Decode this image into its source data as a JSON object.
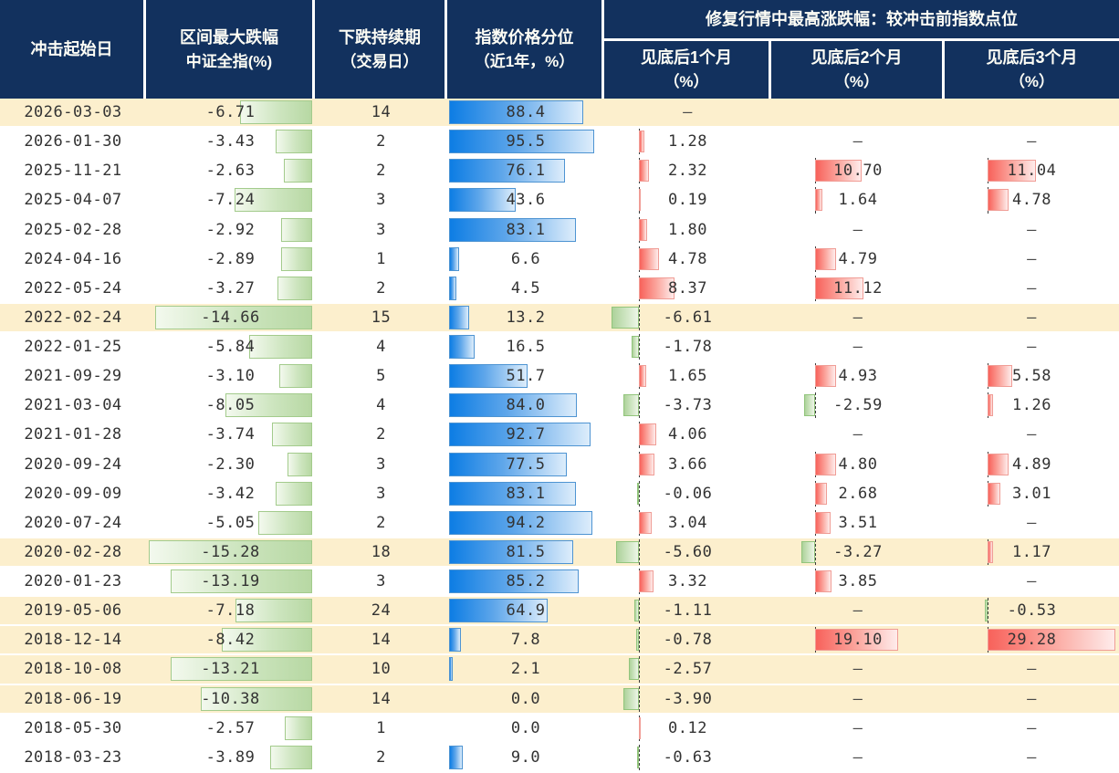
{
  "header": {
    "date": "冲击起始日",
    "drawdown_line1": "区间最大跌幅",
    "drawdown_line2": "中证全指(%)",
    "duration_line1": "下跌持续期",
    "duration_line2": "（交易日）",
    "percentile_line1": "指数价格分位",
    "percentile_line2": "（近1年，%）",
    "recovery_group": "修复行情中最高涨跌幅：较冲击前指数点位",
    "recovery_sub": [
      {
        "line1": "见底后1个月",
        "line2": "（%）"
      },
      {
        "line1": "见底后2个月",
        "line2": "（%）"
      },
      {
        "line1": "见底后3个月",
        "line2": "（%）"
      }
    ]
  },
  "missing_marker": "–",
  "colors": {
    "header_bg": "#12315e",
    "header_text": "#fdfdf5",
    "highlight_row_bg": "#fcefcd",
    "body_text": "#333333",
    "drawdown_bar_fill": "#b7d8a3",
    "drawdown_bar_border": "#a3cb8c",
    "percentile_bar_fill": "#0d7de4",
    "percentile_bar_border": "#4e94d2",
    "gain_bar_fill": "#f8625b",
    "gain_bar_border": "#f09d96",
    "loss_bar_fill": "#add29a",
    "loss_bar_border": "#92c57c",
    "axis_line": "#3c3c3c"
  },
  "chart_data": {
    "type": "table",
    "columns": [
      "冲击起始日",
      "区间最大跌幅 中证全指(%)",
      "下跌持续期（交易日）",
      "指数价格分位（近1年，%）",
      "修复行情中最高涨跌幅 见底后1个月（%）",
      "修复行情中最高涨跌幅 见底后2个月（%）",
      "修复行情中最高涨跌幅 见底后3个月（%）"
    ],
    "rows": [
      {
        "date": "2026-03-03",
        "max_drawdown": -6.71,
        "duration_days": 14,
        "percentile_1y": 88.4,
        "m1": "–",
        "m2": null,
        "m3": null,
        "highlighted": true
      },
      {
        "date": "2026-01-30",
        "max_drawdown": -3.43,
        "duration_days": 2,
        "percentile_1y": 95.5,
        "m1": 1.28,
        "m2": "–",
        "m3": "–",
        "highlighted": false
      },
      {
        "date": "2025-11-21",
        "max_drawdown": -2.63,
        "duration_days": 2,
        "percentile_1y": 76.1,
        "m1": 2.32,
        "m2": 10.7,
        "m3": 11.04,
        "highlighted": false
      },
      {
        "date": "2025-04-07",
        "max_drawdown": -7.24,
        "duration_days": 3,
        "percentile_1y": 43.6,
        "m1": 0.19,
        "m2": 1.64,
        "m3": 4.78,
        "highlighted": false
      },
      {
        "date": "2025-02-28",
        "max_drawdown": -2.92,
        "duration_days": 3,
        "percentile_1y": 83.1,
        "m1": 1.8,
        "m2": "–",
        "m3": "–",
        "highlighted": false
      },
      {
        "date": "2024-04-16",
        "max_drawdown": -2.89,
        "duration_days": 1,
        "percentile_1y": 6.6,
        "m1": 4.78,
        "m2": 4.79,
        "m3": "–",
        "highlighted": false
      },
      {
        "date": "2022-05-24",
        "max_drawdown": -3.27,
        "duration_days": 2,
        "percentile_1y": 4.5,
        "m1": 8.37,
        "m2": 11.12,
        "m3": "–",
        "highlighted": false
      },
      {
        "date": "2022-02-24",
        "max_drawdown": -14.66,
        "duration_days": 15,
        "percentile_1y": 13.2,
        "m1": -6.61,
        "m2": "–",
        "m3": "–",
        "highlighted": true
      },
      {
        "date": "2022-01-25",
        "max_drawdown": -5.84,
        "duration_days": 4,
        "percentile_1y": 16.5,
        "m1": -1.78,
        "m2": "–",
        "m3": "–",
        "highlighted": false
      },
      {
        "date": "2021-09-29",
        "max_drawdown": -3.1,
        "duration_days": 5,
        "percentile_1y": 51.7,
        "m1": 1.65,
        "m2": 4.93,
        "m3": 5.58,
        "highlighted": false
      },
      {
        "date": "2021-03-04",
        "max_drawdown": -8.05,
        "duration_days": 4,
        "percentile_1y": 84.0,
        "m1": -3.73,
        "m2": -2.59,
        "m3": 1.26,
        "highlighted": false
      },
      {
        "date": "2021-01-28",
        "max_drawdown": -3.74,
        "duration_days": 2,
        "percentile_1y": 92.7,
        "m1": 4.06,
        "m2": "–",
        "m3": "–",
        "highlighted": false
      },
      {
        "date": "2020-09-24",
        "max_drawdown": -2.3,
        "duration_days": 3,
        "percentile_1y": 77.5,
        "m1": 3.66,
        "m2": 4.8,
        "m3": 4.89,
        "highlighted": false
      },
      {
        "date": "2020-09-09",
        "max_drawdown": -3.42,
        "duration_days": 3,
        "percentile_1y": 83.1,
        "m1": -0.06,
        "m2": 2.68,
        "m3": 3.01,
        "highlighted": false
      },
      {
        "date": "2020-07-24",
        "max_drawdown": -5.05,
        "duration_days": 2,
        "percentile_1y": 94.2,
        "m1": 3.04,
        "m2": 3.51,
        "m3": "–",
        "highlighted": false
      },
      {
        "date": "2020-02-28",
        "max_drawdown": -15.28,
        "duration_days": 18,
        "percentile_1y": 81.5,
        "m1": -5.6,
        "m2": -3.27,
        "m3": 1.17,
        "highlighted": true
      },
      {
        "date": "2020-01-23",
        "max_drawdown": -13.19,
        "duration_days": 3,
        "percentile_1y": 85.2,
        "m1": 3.32,
        "m2": 3.85,
        "m3": "–",
        "highlighted": false
      },
      {
        "date": "2019-05-06",
        "max_drawdown": -7.18,
        "duration_days": 24,
        "percentile_1y": 64.9,
        "m1": -1.11,
        "m2": "–",
        "m3": -0.53,
        "highlighted": true
      },
      {
        "date": "2018-12-14",
        "max_drawdown": -8.42,
        "duration_days": 14,
        "percentile_1y": 7.8,
        "m1": -0.78,
        "m2": 19.1,
        "m3": 29.28,
        "highlighted": true
      },
      {
        "date": "2018-10-08",
        "max_drawdown": -13.21,
        "duration_days": 10,
        "percentile_1y": 2.1,
        "m1": -2.57,
        "m2": "–",
        "m3": "–",
        "highlighted": true
      },
      {
        "date": "2018-06-19",
        "max_drawdown": -10.38,
        "duration_days": 14,
        "percentile_1y": 0.0,
        "m1": -3.9,
        "m2": "–",
        "m3": "–",
        "highlighted": true
      },
      {
        "date": "2018-05-30",
        "max_drawdown": -2.57,
        "duration_days": 1,
        "percentile_1y": 0.0,
        "m1": 0.12,
        "m2": "–",
        "m3": "–",
        "highlighted": false
      },
      {
        "date": "2018-03-23",
        "max_drawdown": -3.89,
        "duration_days": 2,
        "percentile_1y": 9.0,
        "m1": -0.63,
        "m2": "–",
        "m3": "–",
        "highlighted": false
      }
    ]
  }
}
